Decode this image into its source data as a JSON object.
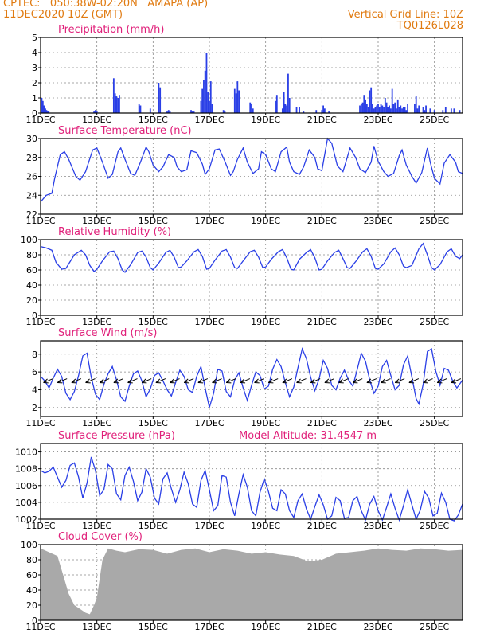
{
  "header": {
    "line1": "CPTEC:   050:38W-02:20N   AMAPA (AP)",
    "line2": "11DEC2020 10Z (GMT)",
    "grid_note": "Vertical Grid Line: 10Z",
    "code": "TQ0126L028"
  },
  "colors": {
    "header": "#e07a10",
    "title": "#e0207a",
    "series": "#2a3fe6",
    "cloud": "#a9a9a9",
    "frame": "#000000",
    "grid": "#8a8a8a"
  },
  "x_axis": {
    "ticks": [
      "11DEC",
      "13DEC",
      "15DEC",
      "17DEC",
      "19DEC",
      "21DEC",
      "23DEC",
      "25DEC"
    ],
    "tick_days": [
      0,
      2,
      4,
      6,
      8,
      10,
      12,
      14
    ],
    "range_days": [
      0,
      15
    ]
  },
  "chart_data": [
    {
      "id": "precip",
      "type": "bar",
      "title": "Precipitation (mm/h)",
      "ylim": [
        0,
        5
      ],
      "yticks": [
        0,
        1,
        2,
        3,
        4,
        5
      ],
      "x": [
        0.04,
        0.08,
        0.12,
        0.17,
        0.21,
        0.25,
        0.29,
        1.9,
        1.95,
        2.0,
        2.6,
        2.65,
        2.7,
        2.75,
        2.8,
        3.5,
        3.55,
        3.9,
        4.2,
        4.25,
        4.5,
        4.55,
        4.6,
        5.35,
        5.4,
        5.45,
        5.7,
        5.75,
        5.8,
        5.85,
        5.9,
        5.95,
        6.0,
        6.05,
        6.1,
        6.5,
        6.55,
        6.9,
        6.95,
        7.0,
        7.05,
        7.45,
        7.5,
        7.55,
        8.35,
        8.4,
        8.6,
        8.65,
        8.7,
        8.75,
        8.8,
        8.85,
        9.1,
        9.2,
        9.35,
        9.8,
        10.0,
        10.05,
        10.1,
        10.25,
        11.35,
        11.4,
        11.45,
        11.5,
        11.55,
        11.6,
        11.65,
        11.7,
        11.75,
        11.8,
        11.85,
        11.9,
        11.95,
        12.0,
        12.05,
        12.1,
        12.15,
        12.2,
        12.25,
        12.3,
        12.35,
        12.4,
        12.45,
        12.5,
        12.55,
        12.6,
        12.65,
        12.7,
        12.75,
        12.8,
        12.85,
        12.9,
        12.95,
        13.0,
        13.05,
        13.3,
        13.35,
        13.4,
        13.45,
        13.6,
        13.65,
        13.7,
        13.85,
        14.0,
        14.3,
        14.4,
        14.6,
        14.7,
        14.9
      ],
      "values": [
        1.0,
        0.8,
        0.5,
        0.3,
        0.2,
        0.1,
        0.1,
        0.1,
        0.2,
        0.1,
        2.3,
        1.3,
        1.1,
        1.0,
        1.2,
        0.6,
        0.5,
        0.3,
        2.0,
        1.7,
        0.1,
        0.2,
        0.1,
        0.2,
        0.1,
        0.1,
        0.8,
        1.6,
        2.2,
        2.8,
        4.0,
        1.4,
        0.8,
        2.1,
        0.6,
        0.2,
        0.1,
        1.6,
        1.3,
        2.1,
        1.5,
        0.7,
        0.6,
        0.3,
        0.8,
        1.2,
        0.3,
        1.4,
        0.6,
        0.5,
        2.6,
        1.0,
        0.4,
        0.4,
        0.1,
        0.2,
        0.2,
        0.5,
        0.3,
        0.1,
        0.5,
        0.6,
        0.7,
        1.2,
        0.9,
        0.6,
        0.4,
        1.5,
        1.7,
        0.6,
        0.3,
        0.4,
        0.5,
        0.6,
        0.4,
        0.6,
        0.5,
        0.4,
        1.0,
        0.7,
        0.4,
        0.5,
        0.3,
        1.6,
        0.6,
        0.7,
        0.3,
        0.9,
        0.4,
        0.5,
        0.3,
        0.4,
        0.4,
        0.2,
        0.6,
        0.6,
        1.1,
        0.3,
        0.5,
        0.4,
        0.2,
        0.5,
        0.3,
        0.2,
        0.2,
        0.4,
        0.3,
        0.3,
        0.2
      ]
    },
    {
      "id": "temp",
      "type": "line",
      "title": "Surface Temperature (nC)",
      "ylim": [
        22,
        30
      ],
      "yticks": [
        22,
        24,
        26,
        28,
        30
      ],
      "x": [
        0,
        0.2,
        0.4,
        0.5,
        0.7,
        0.85,
        1.0,
        1.25,
        1.4,
        1.6,
        1.85,
        2.0,
        2.2,
        2.4,
        2.55,
        2.75,
        2.85,
        3.0,
        3.2,
        3.35,
        3.55,
        3.75,
        3.85,
        4.0,
        4.2,
        4.35,
        4.55,
        4.75,
        4.85,
        5.0,
        5.2,
        5.35,
        5.55,
        5.75,
        5.85,
        6.0,
        6.2,
        6.35,
        6.55,
        6.75,
        6.85,
        7.0,
        7.2,
        7.35,
        7.55,
        7.75,
        7.85,
        8.0,
        8.2,
        8.35,
        8.55,
        8.75,
        8.85,
        9.0,
        9.2,
        9.35,
        9.55,
        9.75,
        9.85,
        10.0,
        10.2,
        10.35,
        10.55,
        10.75,
        10.85,
        11.0,
        11.2,
        11.35,
        11.55,
        11.75,
        11.85,
        12.0,
        12.2,
        12.35,
        12.55,
        12.75,
        12.85,
        13.0,
        13.2,
        13.35,
        13.55,
        13.75,
        13.85,
        14.0,
        14.2,
        14.35,
        14.55,
        14.75,
        14.85,
        15.0
      ],
      "values": [
        23.3,
        24.0,
        24.2,
        25.8,
        28.3,
        28.6,
        27.8,
        26.0,
        25.6,
        26.5,
        28.8,
        29.0,
        27.5,
        25.8,
        26.2,
        28.6,
        29.0,
        27.8,
        26.3,
        26.1,
        27.5,
        29.1,
        28.6,
        27.2,
        26.5,
        27.0,
        28.3,
        28.0,
        27.0,
        26.5,
        26.7,
        28.7,
        28.5,
        27.3,
        26.2,
        26.8,
        28.8,
        28.9,
        27.6,
        26.1,
        26.5,
        27.8,
        29.0,
        27.5,
        26.3,
        26.8,
        28.6,
        28.3,
        26.8,
        26.5,
        28.6,
        29.1,
        27.5,
        26.5,
        26.2,
        27.0,
        28.8,
        28.0,
        26.8,
        26.6,
        30.0,
        29.5,
        27.1,
        26.5,
        27.5,
        29.0,
        28.0,
        26.8,
        26.4,
        27.5,
        29.2,
        27.6,
        26.5,
        26.0,
        26.3,
        28.2,
        28.8,
        27.2,
        26.0,
        25.3,
        26.4,
        29.0,
        27.5,
        25.8,
        25.2,
        27.4,
        28.3,
        27.5,
        26.5,
        26.3
      ]
    },
    {
      "id": "rh",
      "type": "line",
      "title": "Relative Humidity (%)",
      "ylim": [
        0,
        100
      ],
      "yticks": [
        0,
        20,
        40,
        60,
        80,
        100
      ],
      "x": [
        0,
        0.2,
        0.4,
        0.55,
        0.75,
        0.9,
        1.0,
        1.2,
        1.45,
        1.6,
        1.75,
        1.9,
        2.0,
        2.2,
        2.45,
        2.6,
        2.75,
        2.9,
        3.0,
        3.2,
        3.45,
        3.6,
        3.75,
        3.9,
        4.0,
        4.2,
        4.45,
        4.6,
        4.75,
        4.9,
        5.0,
        5.2,
        5.45,
        5.6,
        5.75,
        5.9,
        6.0,
        6.2,
        6.45,
        6.6,
        6.75,
        6.9,
        7.0,
        7.2,
        7.45,
        7.6,
        7.75,
        7.9,
        8.0,
        8.2,
        8.45,
        8.6,
        8.75,
        8.9,
        9.0,
        9.2,
        9.45,
        9.6,
        9.75,
        9.9,
        10.0,
        10.2,
        10.45,
        10.6,
        10.75,
        10.9,
        11.0,
        11.2,
        11.45,
        11.6,
        11.75,
        11.9,
        12.0,
        12.2,
        12.45,
        12.6,
        12.75,
        12.9,
        13.0,
        13.2,
        13.45,
        13.6,
        13.75,
        13.9,
        14.0,
        14.2,
        14.45,
        14.6,
        14.75,
        14.9,
        15.0
      ],
      "values": [
        91,
        89,
        86,
        70,
        61,
        62,
        68,
        80,
        86,
        80,
        66,
        58,
        61,
        72,
        84,
        85,
        75,
        60,
        57,
        67,
        83,
        85,
        77,
        63,
        60,
        69,
        83,
        86,
        77,
        63,
        64,
        72,
        84,
        87,
        78,
        61,
        62,
        73,
        85,
        87,
        77,
        63,
        62,
        72,
        84,
        86,
        77,
        63,
        64,
        74,
        84,
        87,
        76,
        61,
        60,
        74,
        83,
        87,
        76,
        60,
        61,
        72,
        83,
        86,
        75,
        63,
        62,
        71,
        84,
        88,
        78,
        62,
        61,
        68,
        84,
        89,
        80,
        65,
        63,
        66,
        88,
        95,
        80,
        63,
        60,
        67,
        84,
        88,
        78,
        75,
        80
      ]
    },
    {
      "id": "wind",
      "type": "line",
      "title": "Surface Wind (m/s)",
      "ylim": [
        1,
        9.5
      ],
      "yticks": [
        2,
        4,
        6,
        8
      ],
      "x": [
        0,
        0.15,
        0.3,
        0.45,
        0.6,
        0.75,
        0.9,
        1.05,
        1.2,
        1.35,
        1.5,
        1.65,
        1.8,
        1.95,
        2.1,
        2.25,
        2.4,
        2.55,
        2.7,
        2.85,
        3.0,
        3.15,
        3.3,
        3.45,
        3.6,
        3.75,
        3.9,
        4.05,
        4.2,
        4.35,
        4.5,
        4.65,
        4.8,
        4.95,
        5.1,
        5.25,
        5.4,
        5.55,
        5.7,
        5.85,
        6.0,
        6.15,
        6.3,
        6.45,
        6.6,
        6.75,
        6.9,
        7.05,
        7.2,
        7.35,
        7.5,
        7.65,
        7.8,
        7.95,
        8.1,
        8.25,
        8.4,
        8.55,
        8.7,
        8.85,
        9.0,
        9.15,
        9.3,
        9.45,
        9.6,
        9.75,
        9.9,
        10.05,
        10.2,
        10.35,
        10.5,
        10.65,
        10.8,
        10.95,
        11.1,
        11.25,
        11.4,
        11.55,
        11.7,
        11.85,
        12.0,
        12.15,
        12.3,
        12.45,
        12.6,
        12.75,
        12.9,
        13.05,
        13.2,
        13.35,
        13.45,
        13.6,
        13.75,
        13.9,
        14.05,
        14.2,
        14.35,
        14.5,
        14.65,
        14.8,
        15.0
      ],
      "values": [
        5.5,
        5.0,
        4.2,
        5.3,
        6.3,
        5.5,
        3.6,
        2.9,
        3.8,
        5.6,
        7.8,
        8.1,
        5.4,
        3.5,
        2.9,
        4.6,
        5.8,
        6.6,
        5.1,
        3.2,
        2.7,
        4.4,
        5.8,
        6.1,
        5.0,
        3.2,
        4.1,
        5.6,
        5.9,
        5.0,
        4.0,
        3.3,
        4.8,
        6.2,
        5.5,
        4.0,
        3.7,
        5.5,
        6.6,
        4.2,
        2.0,
        3.6,
        6.3,
        6.1,
        3.8,
        3.2,
        5.1,
        5.9,
        4.2,
        2.8,
        4.5,
        6.0,
        5.6,
        4.1,
        4.4,
        6.3,
        7.4,
        6.6,
        4.8,
        3.2,
        4.3,
        6.5,
        8.6,
        7.5,
        5.4,
        3.9,
        5.2,
        7.3,
        6.4,
        4.5,
        4.0,
        5.3,
        6.2,
        5.1,
        4.4,
        6.2,
        8.1,
        7.2,
        5.1,
        3.6,
        4.4,
        6.6,
        7.3,
        5.6,
        4.0,
        4.5,
        6.8,
        7.8,
        5.4,
        3.0,
        2.4,
        4.6,
        8.3,
        8.6,
        6.1,
        4.5,
        6.4,
        6.2,
        5.0,
        4.2,
        5.1
      ]
    },
    {
      "id": "pressure",
      "type": "line",
      "title": "Surface Pressure (hPa)",
      "note": "Model Altitude: 31.4547 m",
      "ylim": [
        1002,
        1011
      ],
      "yticks": [
        1002,
        1004,
        1006,
        1008,
        1010
      ],
      "x": [
        0,
        0.15,
        0.3,
        0.45,
        0.6,
        0.75,
        0.9,
        1.05,
        1.2,
        1.35,
        1.5,
        1.65,
        1.8,
        1.95,
        2.1,
        2.25,
        2.4,
        2.55,
        2.7,
        2.85,
        3.0,
        3.15,
        3.3,
        3.45,
        3.6,
        3.75,
        3.9,
        4.05,
        4.2,
        4.35,
        4.5,
        4.65,
        4.8,
        4.95,
        5.1,
        5.25,
        5.4,
        5.55,
        5.7,
        5.85,
        6.0,
        6.15,
        6.3,
        6.45,
        6.6,
        6.75,
        6.9,
        7.05,
        7.2,
        7.35,
        7.5,
        7.65,
        7.8,
        7.95,
        8.1,
        8.25,
        8.4,
        8.55,
        8.7,
        8.85,
        9.0,
        9.15,
        9.3,
        9.45,
        9.6,
        9.75,
        9.9,
        10.05,
        10.2,
        10.35,
        10.5,
        10.65,
        10.8,
        10.95,
        11.1,
        11.25,
        11.4,
        11.55,
        11.7,
        11.85,
        12.0,
        12.15,
        12.3,
        12.45,
        12.6,
        12.75,
        12.9,
        13.05,
        13.2,
        13.35,
        13.5,
        13.65,
        13.8,
        13.95,
        14.1,
        14.25,
        14.4,
        14.55,
        14.7,
        14.85,
        15.0
      ],
      "values": [
        1007.8,
        1007.5,
        1007.7,
        1008.2,
        1007.0,
        1005.8,
        1006.6,
        1008.4,
        1008.7,
        1007.0,
        1004.5,
        1006.3,
        1009.4,
        1007.8,
        1004.8,
        1005.5,
        1008.5,
        1008.0,
        1005.0,
        1004.3,
        1007.2,
        1008.2,
        1006.5,
        1004.2,
        1005.2,
        1008.0,
        1007.0,
        1004.5,
        1003.8,
        1006.8,
        1007.5,
        1005.6,
        1004.0,
        1005.5,
        1007.6,
        1006.2,
        1003.8,
        1003.4,
        1006.6,
        1007.8,
        1005.5,
        1003.0,
        1003.6,
        1007.2,
        1007.0,
        1004.0,
        1002.4,
        1005.0,
        1007.3,
        1005.8,
        1003.0,
        1002.4,
        1005.2,
        1006.8,
        1005.3,
        1003.3,
        1003.0,
        1005.5,
        1005.0,
        1003.0,
        1002.2,
        1004.2,
        1005.0,
        1003.2,
        1002.0,
        1003.5,
        1004.9,
        1003.7,
        1002.0,
        1002.4,
        1004.6,
        1004.2,
        1002.1,
        1002.2,
        1004.2,
        1004.7,
        1003.0,
        1001.9,
        1003.8,
        1004.7,
        1003.0,
        1001.9,
        1003.4,
        1005.0,
        1003.3,
        1001.9,
        1003.6,
        1005.5,
        1003.7,
        1002.0,
        1003.1,
        1005.3,
        1004.5,
        1002.4,
        1002.7,
        1005.1,
        1004.0,
        1002.0,
        1001.8,
        1002.5,
        1003.8
      ]
    },
    {
      "id": "cloud",
      "type": "area",
      "title": "Cloud Cover (%)",
      "ylim": [
        0,
        100
      ],
      "yticks": [
        0,
        20,
        40,
        60,
        80,
        100
      ],
      "x": [
        0,
        0.3,
        0.6,
        0.8,
        1.0,
        1.2,
        1.4,
        1.6,
        1.75,
        1.9,
        2.0,
        2.2,
        2.4,
        2.7,
        3.0,
        3.5,
        4.0,
        4.5,
        5.0,
        5.5,
        6.0,
        6.5,
        7.0,
        7.5,
        8.0,
        8.5,
        9.0,
        9.5,
        10.0,
        10.5,
        11.0,
        11.5,
        12.0,
        12.5,
        13.0,
        13.5,
        14.0,
        14.5,
        15.0
      ],
      "values": [
        95,
        90,
        85,
        60,
        35,
        20,
        15,
        10,
        8,
        20,
        30,
        80,
        95,
        92,
        90,
        94,
        93,
        88,
        93,
        95,
        90,
        94,
        92,
        88,
        90,
        87,
        85,
        78,
        80,
        88,
        90,
        92,
        95,
        93,
        92,
        95,
        94,
        92,
        93
      ]
    }
  ]
}
